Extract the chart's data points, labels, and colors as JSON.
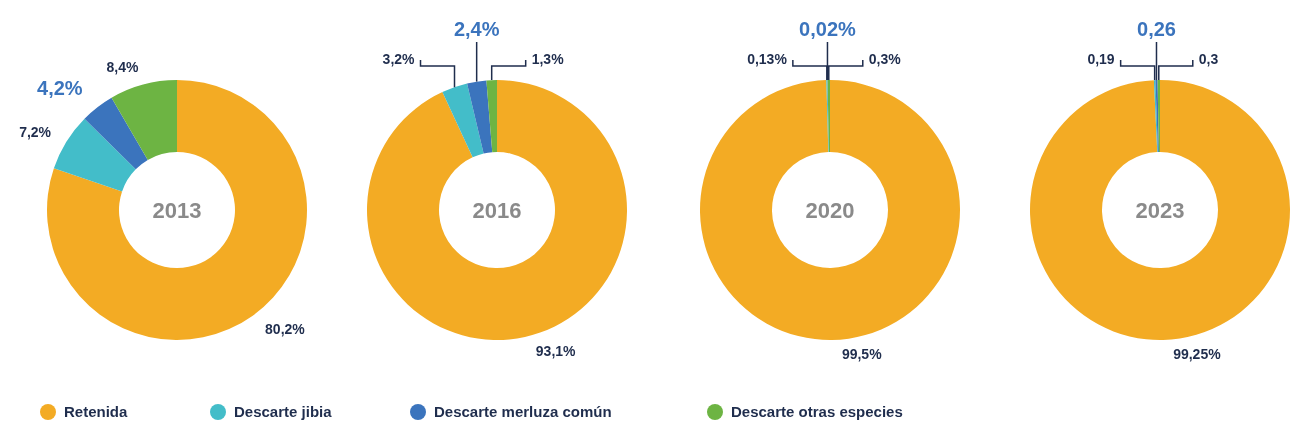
{
  "chart_data": [
    {
      "type": "donut",
      "title": "2013",
      "categories": [
        "Retenida",
        "Descarte jibia",
        "Descarte merluza común",
        "Descarte otras especies"
      ],
      "values": [
        80.2,
        7.2,
        4.2,
        8.4
      ],
      "colors": [
        "#f3ab24",
        "#43bdc9",
        "#3b74bd",
        "#6db443"
      ],
      "value_labels": [
        "80,2%",
        "7,2%",
        "4,2%",
        "8,4%"
      ],
      "legend": "bottom"
    },
    {
      "type": "donut",
      "title": "2016",
      "values": [
        93.1,
        3.2,
        2.4,
        1.3
      ],
      "colors": [
        "#f3ab24",
        "#43bdc9",
        "#3b74bd",
        "#6db443"
      ],
      "value_labels": [
        "93,1%",
        "3,2%",
        "2,4%",
        "1,3%"
      ]
    },
    {
      "type": "donut",
      "title": "2020",
      "values": [
        99.5,
        0.13,
        0.02,
        0.3
      ],
      "colors": [
        "#f3ab24",
        "#43bdc9",
        "#3b74bd",
        "#6db443"
      ],
      "value_labels": [
        "99,5%",
        "0,13%",
        "0,02%",
        "0,3%"
      ]
    },
    {
      "type": "donut",
      "title": "2023",
      "values": [
        99.25,
        0.19,
        0.26,
        0.3
      ],
      "colors": [
        "#f3ab24",
        "#43bdc9",
        "#3b74bd",
        "#6db443"
      ],
      "value_labels": [
        "99,25%",
        "0,19",
        "0,26",
        "0,3"
      ]
    }
  ]
}
